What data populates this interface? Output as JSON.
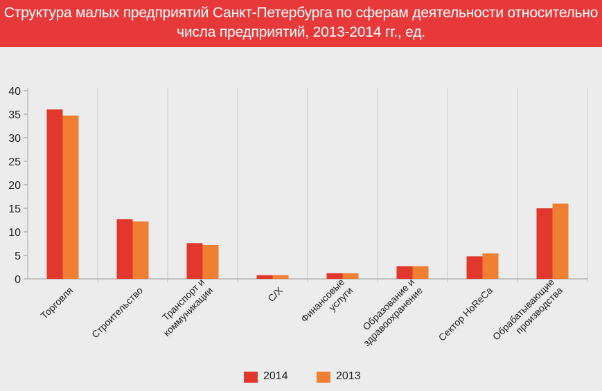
{
  "header": {
    "title_line1": "Структура малых предприятий Санкт-Петербурга по сферам деятельности относительно",
    "title_line2": "числа предприятий, 2013-2014 гг., ед."
  },
  "chart_data": {
    "type": "bar",
    "title": "Структура малых предприятий Санкт-Петербурга по сферам деятельности относительно числа предприятий, 2013-2014 гг., ед.",
    "categories": [
      [
        "Торговля"
      ],
      [
        "Строительство"
      ],
      [
        "Транспорт и",
        "коммуникации"
      ],
      [
        "С/Х"
      ],
      [
        "Финансовые",
        "услуги"
      ],
      [
        "Образование и",
        "здравоохранение"
      ],
      [
        "Сектор HoReCa"
      ],
      [
        "Обрабатывающие",
        "производства"
      ]
    ],
    "series": [
      {
        "name": "2014",
        "color": "#e2372c",
        "values": [
          36.0,
          12.7,
          7.6,
          0.8,
          1.2,
          2.7,
          4.8,
          15.0
        ]
      },
      {
        "name": "2013",
        "color": "#f07f32",
        "values": [
          34.7,
          12.2,
          7.2,
          0.8,
          1.2,
          2.7,
          5.4,
          16.0
        ]
      }
    ],
    "ylim": [
      0,
      40
    ],
    "yticks": [
      "0",
      "5",
      "10",
      "15",
      "20",
      "25",
      "30",
      "35",
      "40"
    ],
    "grid": "vertical separators between categories",
    "legend_position": "bottom-center",
    "xlabel": "",
    "ylabel": ""
  }
}
